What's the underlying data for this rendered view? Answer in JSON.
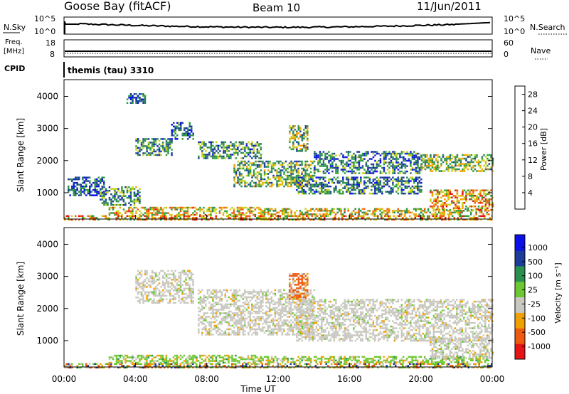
{
  "header": {
    "station": "Goose Bay (fitACF)",
    "beam": "Beam 10",
    "date": "11/Jun/2011"
  },
  "noise_panel": {
    "left_label": "N.Sky",
    "left_ticks": [
      "10^5",
      "10^0"
    ],
    "right_label": "N.Search",
    "right_ticks": [
      "10^5",
      "10^0"
    ]
  },
  "freq_panel": {
    "left_label_line1": "Freq.",
    "left_label_line2": "[MHz]",
    "left_ticks": [
      "18",
      "8"
    ],
    "right_label": "Nave",
    "right_ticks": [
      "60",
      "0"
    ]
  },
  "cpid_panel": {
    "label": "CPID",
    "text": "themis (tau) 3310"
  },
  "colors": {
    "power_scale": [
      "#0a10e8",
      "#1c3c9c",
      "#2a7f5c",
      "#2f9e3a",
      "#c9d21a",
      "#f0a000",
      "#ee5a10",
      "#e61414"
    ],
    "velocity_scale": [
      "#e61414",
      "#ee5a10",
      "#f0a000",
      "#c8c8c0",
      "#6cc830",
      "#2a9050",
      "#1c3c9c",
      "#0a10e8"
    ]
  },
  "chart_data": [
    {
      "type": "heatmap",
      "name": "power",
      "xlabel": "Time UT",
      "ylabel": "Slant Range [km]",
      "xlim": [
        0,
        24
      ],
      "ylim": [
        180,
        4520
      ],
      "yticks": [
        1000,
        2000,
        3000,
        4000
      ],
      "ytick_labels": [
        "1000",
        "2000",
        "3000",
        "4000"
      ],
      "colorbar": {
        "label": "Power [dB]",
        "range": [
          0,
          30
        ],
        "ticks": [
          4,
          8,
          12,
          16,
          20,
          24,
          28
        ],
        "tick_labels": [
          "4",
          "8",
          "12",
          "16",
          "20",
          "24",
          "28"
        ]
      },
      "echo_regions": [
        {
          "t": [
            0.0,
            24.0
          ],
          "r": [
            180,
            300
          ],
          "level": 20
        },
        {
          "t": [
            2.5,
            11.0
          ],
          "r": [
            300,
            560
          ],
          "level": 18
        },
        {
          "t": [
            11.0,
            23.8
          ],
          "r": [
            300,
            520
          ],
          "level": 16
        },
        {
          "t": [
            0.2,
            2.2
          ],
          "r": [
            900,
            1500
          ],
          "level": 6
        },
        {
          "t": [
            2.0,
            4.2
          ],
          "r": [
            600,
            1200
          ],
          "level": 10
        },
        {
          "t": [
            4.0,
            6.0
          ],
          "r": [
            2200,
            2700
          ],
          "level": 9
        },
        {
          "t": [
            6.0,
            7.2
          ],
          "r": [
            2700,
            3200
          ],
          "level": 8
        },
        {
          "t": [
            3.5,
            4.5
          ],
          "r": [
            3800,
            4100
          ],
          "level": 6
        },
        {
          "t": [
            7.5,
            11.0
          ],
          "r": [
            2100,
            2600
          ],
          "level": 10
        },
        {
          "t": [
            9.5,
            14.0
          ],
          "r": [
            1200,
            2000
          ],
          "level": 12
        },
        {
          "t": [
            12.6,
            13.6
          ],
          "r": [
            2300,
            3100
          ],
          "level": 14
        },
        {
          "t": [
            13.0,
            20.0
          ],
          "r": [
            1000,
            1500
          ],
          "level": 9
        },
        {
          "t": [
            14.0,
            20.0
          ],
          "r": [
            1600,
            2300
          ],
          "level": 8
        },
        {
          "t": [
            20.0,
            24.0
          ],
          "r": [
            1700,
            2200
          ],
          "level": 14
        },
        {
          "t": [
            20.5,
            24.0
          ],
          "r": [
            450,
            1100
          ],
          "level": 20
        }
      ]
    },
    {
      "type": "heatmap",
      "name": "velocity",
      "xlabel": "Time UT",
      "ylabel": "Slant Range [km]",
      "xlim": [
        0,
        24
      ],
      "ylim": [
        180,
        4520
      ],
      "xticks": [
        0,
        4,
        8,
        12,
        16,
        20,
        24
      ],
      "xtick_labels": [
        "00:00",
        "04:00",
        "08:00",
        "12:00",
        "16:00",
        "20:00",
        "00:00"
      ],
      "yticks": [
        1000,
        2000,
        3000,
        4000
      ],
      "ytick_labels": [
        "1000",
        "2000",
        "3000",
        "4000"
      ],
      "colorbar": {
        "label": "Velocity [m s⁻¹]",
        "tick_labels": [
          "1000",
          "500",
          "100",
          "25",
          "-25",
          "-100",
          "-500",
          "-1000"
        ]
      },
      "echo_regions": [
        {
          "t": [
            0.0,
            24.0
          ],
          "r": [
            180,
            300
          ],
          "category": "mixed"
        },
        {
          "t": [
            2.5,
            11.0
          ],
          "r": [
            300,
            560
          ],
          "category": "positive-green"
        },
        {
          "t": [
            11.0,
            23.8
          ],
          "r": [
            300,
            520
          ],
          "category": "positive-green"
        },
        {
          "t": [
            4.0,
            7.2
          ],
          "r": [
            2200,
            3200
          ],
          "category": "low-gray"
        },
        {
          "t": [
            7.5,
            14.0
          ],
          "r": [
            1200,
            2600
          ],
          "category": "low-gray"
        },
        {
          "t": [
            12.6,
            13.6
          ],
          "r": [
            2300,
            3100
          ],
          "category": "negative-orange"
        },
        {
          "t": [
            13.0,
            24.0
          ],
          "r": [
            1000,
            2300
          ],
          "category": "low-gray"
        },
        {
          "t": [
            20.5,
            24.0
          ],
          "r": [
            450,
            1100
          ],
          "category": "low-gray"
        }
      ]
    }
  ]
}
